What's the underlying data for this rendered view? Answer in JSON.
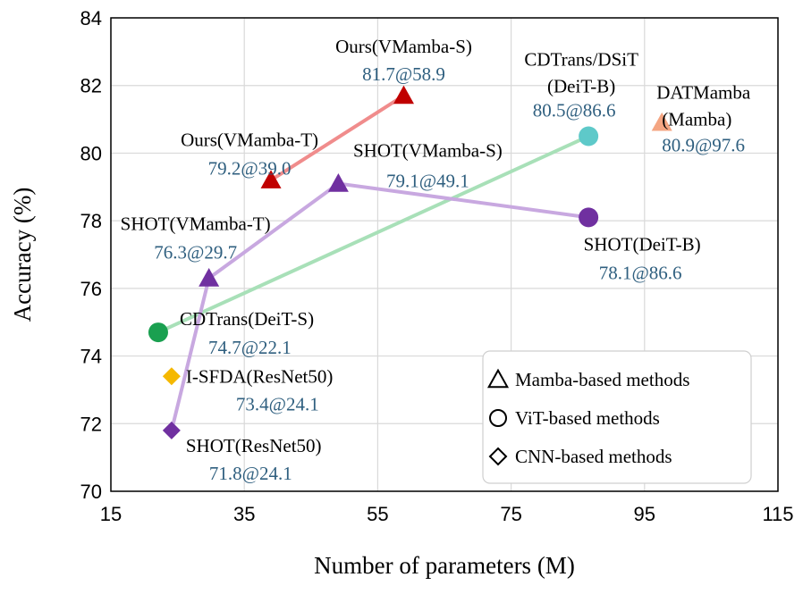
{
  "chart_data": {
    "type": "scatter",
    "title": "",
    "xlabel": "Number of parameters (M)",
    "ylabel": "Accuracy (%)",
    "xlim": [
      15,
      115
    ],
    "ylim": [
      70,
      84
    ],
    "xticks": [
      15,
      35,
      55,
      75,
      95,
      115
    ],
    "yticks": [
      70,
      72,
      74,
      76,
      78,
      80,
      82,
      84
    ],
    "grid": true,
    "value_color": "#2f5f7f",
    "points": [
      {
        "id": "ours-s",
        "name": "Ours(VMamba-S)",
        "value_label": "81.7@58.9",
        "x": 58.9,
        "y": 81.7,
        "marker": "triangle",
        "color": "#c00000"
      },
      {
        "id": "ours-t",
        "name": "Ours(VMamba-T)",
        "value_label": "79.2@39.0",
        "x": 39.0,
        "y": 79.2,
        "marker": "triangle",
        "color": "#c00000"
      },
      {
        "id": "shot-vs",
        "name": "SHOT(VMamba-S)",
        "value_label": "79.1@49.1",
        "x": 49.1,
        "y": 79.1,
        "marker": "triangle",
        "color": "#7030a0"
      },
      {
        "id": "shot-vt",
        "name": "SHOT(VMamba-T)",
        "value_label": "76.3@29.7",
        "x": 29.7,
        "y": 76.3,
        "marker": "triangle",
        "color": "#7030a0"
      },
      {
        "id": "datmamba",
        "name": "DATMamba",
        "name2": "(Mamba)",
        "value_label": "80.9@97.6",
        "x": 97.6,
        "y": 80.9,
        "marker": "triangle",
        "color": "#f4a582"
      },
      {
        "id": "cdtrans-b",
        "name": "CDTrans/DSiT",
        "name2": "(DeiT-B)",
        "value_label": "80.5@86.6",
        "x": 86.6,
        "y": 80.5,
        "marker": "circle",
        "color": "#5ec9c9"
      },
      {
        "id": "shot-deitb",
        "name": "SHOT(DeiT-B)",
        "value_label": "78.1@86.6",
        "x": 86.6,
        "y": 78.1,
        "marker": "circle",
        "color": "#7030a0"
      },
      {
        "id": "cdtrans-s",
        "name": "CDTrans(DeiT-S)",
        "value_label": "74.7@22.1",
        "x": 22.1,
        "y": 74.7,
        "marker": "circle",
        "color": "#1aa050"
      },
      {
        "id": "isfda",
        "name": "I-SFDA(ResNet50)",
        "value_label": "73.4@24.1",
        "x": 24.1,
        "y": 73.4,
        "marker": "diamond",
        "color": "#f5b800"
      },
      {
        "id": "shot-r50",
        "name": "SHOT(ResNet50)",
        "value_label": "71.8@24.1",
        "x": 24.1,
        "y": 71.8,
        "marker": "diamond",
        "color": "#7030a0"
      }
    ],
    "lines": [
      {
        "id": "ours-line",
        "color": "#f08c8c",
        "points": [
          "ours-t",
          "ours-s"
        ]
      },
      {
        "id": "cdtrans-line",
        "color": "#a8e0b8",
        "points": [
          "cdtrans-s",
          "cdtrans-b"
        ]
      },
      {
        "id": "shot-line",
        "color": "#c8a8e0",
        "points": [
          "shot-r50",
          "shot-vt",
          "shot-vs",
          "shot-deitb"
        ]
      }
    ],
    "legend": {
      "position": "bottom-right",
      "entries": [
        {
          "marker": "triangle",
          "label": "Mamba-based methods"
        },
        {
          "marker": "circle",
          "label": "ViT-based methods"
        },
        {
          "marker": "diamond",
          "label": "CNN-based methods"
        }
      ]
    }
  }
}
